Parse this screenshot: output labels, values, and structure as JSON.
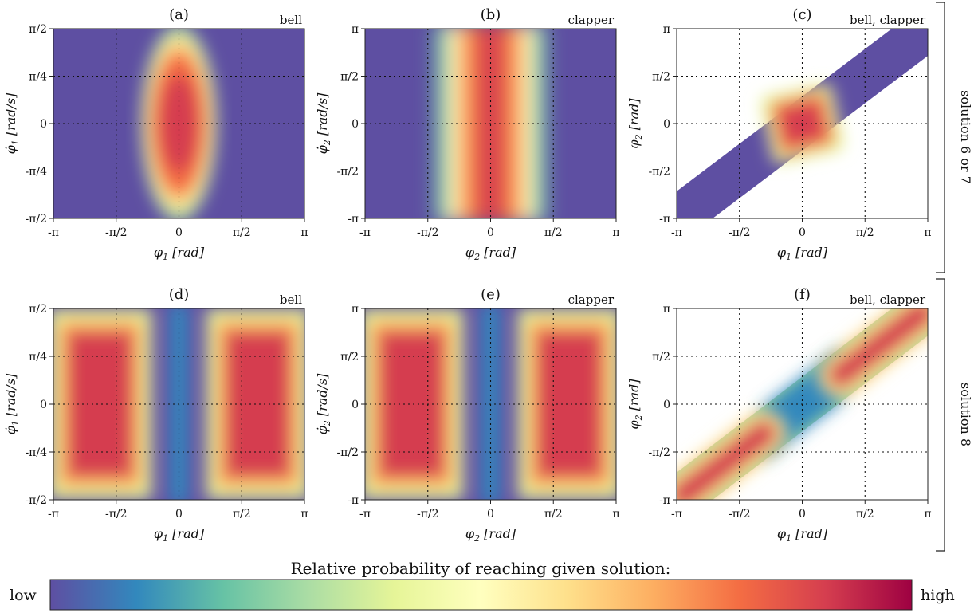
{
  "chart_data": [
    {
      "id": "a",
      "type": "heatmap",
      "panel_label": "(a)",
      "corner_label": "bell",
      "xlabel": {
        "symbol": "φ",
        "sub": "1",
        "unit": "[rad]",
        "dot": false
      },
      "ylabel": {
        "symbol": "φ",
        "sub": "1",
        "unit": "[rad/s]",
        "dot": true
      },
      "xlim": [
        -3.1416,
        3.1416
      ],
      "ylim": [
        -1.5708,
        1.5708
      ],
      "xticks": [
        -3.1416,
        -1.5708,
        0,
        1.5708,
        3.1416
      ],
      "xticklabels": [
        "-π",
        "-π/2",
        "0",
        "π/2",
        "π"
      ],
      "yticks": [
        -1.5708,
        -0.7854,
        0,
        0.7854,
        1.5708
      ],
      "yticklabels": [
        "-π/2",
        "-π/4",
        "0",
        "π/4",
        "π/2"
      ],
      "grid": true,
      "domain": "full",
      "pattern": "ellipse"
    },
    {
      "id": "b",
      "type": "heatmap",
      "panel_label": "(b)",
      "corner_label": "clapper",
      "xlabel": {
        "symbol": "φ",
        "sub": "2",
        "unit": "[rad]",
        "dot": false
      },
      "ylabel": {
        "symbol": "φ",
        "sub": "2",
        "unit": "[rad/s]",
        "dot": true
      },
      "xlim": [
        -3.1416,
        3.1416
      ],
      "ylim": [
        -3.1416,
        3.1416
      ],
      "xticks": [
        -3.1416,
        -1.5708,
        0,
        1.5708,
        3.1416
      ],
      "xticklabels": [
        "-π",
        "-π/2",
        "0",
        "π/2",
        "π"
      ],
      "yticks": [
        -3.1416,
        -1.5708,
        0,
        1.5708,
        3.1416
      ],
      "yticklabels": [
        "-π",
        "-π/2",
        "0",
        "π/2",
        "π"
      ],
      "grid": true,
      "domain": "full",
      "pattern": "center-band"
    },
    {
      "id": "c",
      "type": "heatmap",
      "panel_label": "(c)",
      "corner_label": "bell, clapper",
      "xlabel": {
        "symbol": "φ",
        "sub": "1",
        "unit": "[rad]",
        "dot": false
      },
      "ylabel": {
        "symbol": "φ",
        "sub": "2",
        "unit": "[rad]",
        "dot": false
      },
      "xlim": [
        -3.1416,
        3.1416
      ],
      "ylim": [
        -3.1416,
        3.1416
      ],
      "xticks": [
        -3.1416,
        -1.5708,
        0,
        1.5708,
        3.1416
      ],
      "xticklabels": [
        "-π",
        "-π/2",
        "0",
        "π/2",
        "π"
      ],
      "yticks": [
        -3.1416,
        -1.5708,
        0,
        1.5708,
        3.1416
      ],
      "yticklabels": [
        "-π",
        "-π/2",
        "0",
        "π/2",
        "π"
      ],
      "grid": true,
      "domain": "diagonal-strip",
      "pattern": "center-blob"
    },
    {
      "id": "d",
      "type": "heatmap",
      "panel_label": "(d)",
      "corner_label": "bell",
      "xlabel": {
        "symbol": "φ",
        "sub": "1",
        "unit": "[rad]",
        "dot": false
      },
      "ylabel": {
        "symbol": "φ",
        "sub": "1",
        "unit": "[rad/s]",
        "dot": true
      },
      "xlim": [
        -3.1416,
        3.1416
      ],
      "ylim": [
        -1.5708,
        1.5708
      ],
      "xticks": [
        -3.1416,
        -1.5708,
        0,
        1.5708,
        3.1416
      ],
      "xticklabels": [
        "-π",
        "-π/2",
        "0",
        "π/2",
        "π"
      ],
      "yticks": [
        -1.5708,
        -0.7854,
        0,
        0.7854,
        1.5708
      ],
      "yticklabels": [
        "-π/2",
        "-π/4",
        "0",
        "π/4",
        "π/2"
      ],
      "grid": true,
      "domain": "full",
      "pattern": "two-lobes-bell"
    },
    {
      "id": "e",
      "type": "heatmap",
      "panel_label": "(e)",
      "corner_label": "clapper",
      "xlabel": {
        "symbol": "φ",
        "sub": "2",
        "unit": "[rad]",
        "dot": false
      },
      "ylabel": {
        "symbol": "φ",
        "sub": "2",
        "unit": "[rad/s]",
        "dot": true
      },
      "xlim": [
        -3.1416,
        3.1416
      ],
      "ylim": [
        -3.1416,
        3.1416
      ],
      "xticks": [
        -3.1416,
        -1.5708,
        0,
        1.5708,
        3.1416
      ],
      "xticklabels": [
        "-π",
        "-π/2",
        "0",
        "π/2",
        "π"
      ],
      "yticks": [
        -3.1416,
        -1.5708,
        0,
        1.5708,
        3.1416
      ],
      "yticklabels": [
        "-π",
        "-π/2",
        "0",
        "π/2",
        "π"
      ],
      "grid": true,
      "domain": "full",
      "pattern": "two-lobes-clapper"
    },
    {
      "id": "f",
      "type": "heatmap",
      "panel_label": "(f)",
      "corner_label": "bell, clapper",
      "xlabel": {
        "symbol": "φ",
        "sub": "1",
        "unit": "[rad]",
        "dot": false
      },
      "ylabel": {
        "symbol": "φ",
        "sub": "2",
        "unit": "[rad]",
        "dot": false
      },
      "xlim": [
        -3.1416,
        3.1416
      ],
      "ylim": [
        -3.1416,
        3.1416
      ],
      "xticks": [
        -3.1416,
        -1.5708,
        0,
        1.5708,
        3.1416
      ],
      "xticklabels": [
        "-π",
        "-π/2",
        "0",
        "π/2",
        "π"
      ],
      "yticks": [
        -3.1416,
        -1.5708,
        0,
        1.5708,
        3.1416
      ],
      "yticklabels": [
        "-π",
        "-π/2",
        "0",
        "π/2",
        "π"
      ],
      "grid": true,
      "domain": "diagonal-strip",
      "pattern": "two-diag-blobs"
    }
  ],
  "row_labels": [
    "solution 6 or 7",
    "solution 8"
  ],
  "colorbar": {
    "title": "Relative probability of reaching given solution:",
    "low_label": "low",
    "high_label": "high",
    "colors": [
      "#5e4fa2",
      "#3288bd",
      "#66c2a5",
      "#abdda4",
      "#e6f598",
      "#ffffbf",
      "#fee08b",
      "#fdae61",
      "#f46d43",
      "#d53e4f",
      "#9e0142"
    ]
  }
}
